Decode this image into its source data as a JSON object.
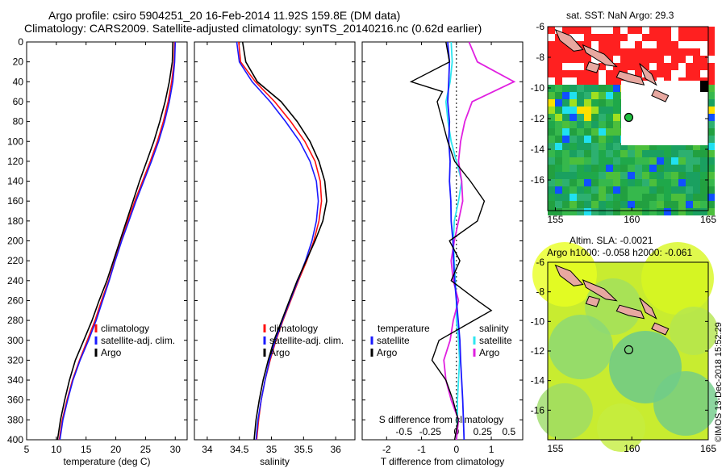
{
  "header": {
    "line1": "Argo profile: csiro 5904251_20 16-Feb-2014 11.92S 159.8E (DM data)",
    "line2": "Climatology: CARS2009. Satellite-adjusted climatology: synTS_20140216.nc (0.62d earlier)"
  },
  "colors": {
    "climatology": "#ff1010",
    "satellite": "#1a1aff",
    "argo": "#000000",
    "satellite_s": "#2ee6f0",
    "argo_s": "#e020e0"
  },
  "chart_data": [
    {
      "type": "line",
      "name": "temperature",
      "xlabel": "temperature (deg C)",
      "ylabel": "",
      "xlim": [
        5,
        32
      ],
      "ylim": [
        400,
        0
      ],
      "xticks": [
        "5",
        "10",
        "15",
        "20",
        "25",
        "30"
      ],
      "yticks": [
        "0",
        "20",
        "40",
        "60",
        "80",
        "100",
        "120",
        "140",
        "160",
        "180",
        "200",
        "220",
        "240",
        "260",
        "280",
        "300",
        "320",
        "340",
        "360",
        "380",
        "400"
      ],
      "legend": [
        "climatology",
        "satellite-adj. clim.",
        "Argo"
      ],
      "series": [
        {
          "name": "climatology",
          "points": [
            [
              29.9,
              0
            ],
            [
              29.8,
              20
            ],
            [
              29.4,
              40
            ],
            [
              28.8,
              60
            ],
            [
              28.0,
              80
            ],
            [
              27.0,
              100
            ],
            [
              25.8,
              120
            ],
            [
              24.5,
              140
            ],
            [
              23.2,
              160
            ],
            [
              22.0,
              180
            ],
            [
              20.9,
              200
            ],
            [
              19.8,
              220
            ],
            [
              18.8,
              240
            ],
            [
              17.6,
              260
            ],
            [
              16.5,
              280
            ],
            [
              15.2,
              300
            ],
            [
              13.9,
              320
            ],
            [
              12.7,
              340
            ],
            [
              11.8,
              360
            ],
            [
              11.0,
              380
            ],
            [
              10.5,
              400
            ]
          ]
        },
        {
          "name": "satellite-adj. clim.",
          "points": [
            [
              30.0,
              0
            ],
            [
              29.9,
              20
            ],
            [
              29.6,
              40
            ],
            [
              29.0,
              60
            ],
            [
              28.2,
              80
            ],
            [
              27.2,
              100
            ],
            [
              26.0,
              120
            ],
            [
              24.7,
              140
            ],
            [
              23.4,
              160
            ],
            [
              22.2,
              180
            ],
            [
              21.0,
              200
            ],
            [
              19.9,
              220
            ],
            [
              18.9,
              240
            ],
            [
              17.8,
              260
            ],
            [
              16.7,
              280
            ],
            [
              15.4,
              300
            ],
            [
              14.0,
              320
            ],
            [
              12.8,
              340
            ],
            [
              11.9,
              360
            ],
            [
              11.1,
              380
            ],
            [
              10.6,
              400
            ]
          ]
        },
        {
          "name": "Argo",
          "points": [
            [
              29.6,
              0
            ],
            [
              29.5,
              20
            ],
            [
              29.0,
              40
            ],
            [
              28.3,
              60
            ],
            [
              27.4,
              80
            ],
            [
              26.4,
              100
            ],
            [
              25.2,
              120
            ],
            [
              24.0,
              140
            ],
            [
              22.9,
              160
            ],
            [
              21.8,
              180
            ],
            [
              20.7,
              200
            ],
            [
              19.6,
              220
            ],
            [
              18.5,
              240
            ],
            [
              17.2,
              260
            ],
            [
              16.0,
              280
            ],
            [
              14.6,
              300
            ],
            [
              13.2,
              320
            ],
            [
              12.2,
              340
            ],
            [
              11.4,
              360
            ],
            [
              10.7,
              380
            ],
            [
              10.2,
              400
            ]
          ]
        }
      ]
    },
    {
      "type": "line",
      "name": "salinity",
      "xlabel": "salinity",
      "ylabel": "",
      "xlim": [
        33.8,
        36.3
      ],
      "ylim": [
        400,
        0
      ],
      "xticks": [
        "34",
        "34.5",
        "35",
        "35.5",
        "36"
      ],
      "legend": [
        "climatology",
        "satellite-adj. clim.",
        "Argo"
      ],
      "series": [
        {
          "name": "climatology",
          "points": [
            [
              34.49,
              0
            ],
            [
              34.52,
              20
            ],
            [
              34.75,
              40
            ],
            [
              35.05,
              60
            ],
            [
              35.3,
              80
            ],
            [
              35.52,
              100
            ],
            [
              35.68,
              120
            ],
            [
              35.76,
              140
            ],
            [
              35.78,
              160
            ],
            [
              35.74,
              180
            ],
            [
              35.66,
              200
            ],
            [
              35.55,
              220
            ],
            [
              35.42,
              240
            ],
            [
              35.3,
              260
            ],
            [
              35.18,
              280
            ],
            [
              35.07,
              300
            ],
            [
              34.98,
              320
            ],
            [
              34.9,
              340
            ],
            [
              34.84,
              360
            ],
            [
              34.8,
              380
            ],
            [
              34.77,
              400
            ]
          ]
        },
        {
          "name": "satellite-adj. clim.",
          "points": [
            [
              34.46,
              0
            ],
            [
              34.5,
              20
            ],
            [
              34.7,
              40
            ],
            [
              34.98,
              60
            ],
            [
              35.22,
              80
            ],
            [
              35.44,
              100
            ],
            [
              35.6,
              120
            ],
            [
              35.7,
              140
            ],
            [
              35.73,
              160
            ],
            [
              35.7,
              180
            ],
            [
              35.63,
              200
            ],
            [
              35.53,
              220
            ],
            [
              35.41,
              240
            ],
            [
              35.29,
              260
            ],
            [
              35.17,
              280
            ],
            [
              35.06,
              300
            ],
            [
              34.97,
              320
            ],
            [
              34.9,
              340
            ],
            [
              34.84,
              360
            ],
            [
              34.79,
              380
            ],
            [
              34.76,
              400
            ]
          ]
        },
        {
          "name": "Argo",
          "points": [
            [
              34.55,
              0
            ],
            [
              34.6,
              20
            ],
            [
              34.78,
              40
            ],
            [
              35.15,
              60
            ],
            [
              35.4,
              80
            ],
            [
              35.6,
              100
            ],
            [
              35.74,
              120
            ],
            [
              35.83,
              140
            ],
            [
              35.86,
              160
            ],
            [
              35.8,
              180
            ],
            [
              35.68,
              200
            ],
            [
              35.54,
              220
            ],
            [
              35.4,
              240
            ],
            [
              35.28,
              260
            ],
            [
              35.16,
              280
            ],
            [
              35.04,
              300
            ],
            [
              34.95,
              320
            ],
            [
              34.87,
              340
            ],
            [
              34.81,
              360
            ],
            [
              34.76,
              380
            ],
            [
              34.73,
              400
            ]
          ]
        }
      ]
    },
    {
      "type": "line",
      "name": "difference",
      "xlabel": "T difference from climatology",
      "xlabel2": "S difference from climatology",
      "xlim": [
        -2.7,
        1.9
      ],
      "ylim": [
        400,
        0
      ],
      "xticks": [
        "-2",
        "-1",
        "0",
        "1"
      ],
      "xticks2": [
        "-0.5",
        "-0.25",
        "0",
        "0.25",
        "0.5"
      ],
      "legend_t_title": "temperature",
      "legend_s_title": "salinity",
      "legend_t": [
        "satellite",
        "Argo"
      ],
      "legend_s": [
        "satellite",
        "Argo"
      ],
      "series": [
        {
          "name": "T satellite",
          "points": [
            [
              -0.25,
              0
            ],
            [
              -0.2,
              20
            ],
            [
              -0.22,
              40
            ],
            [
              -0.25,
              60
            ],
            [
              -0.2,
              80
            ],
            [
              -0.22,
              100
            ],
            [
              -0.18,
              120
            ],
            [
              -0.2,
              140
            ],
            [
              -0.16,
              160
            ],
            [
              -0.15,
              180
            ],
            [
              -0.1,
              200
            ],
            [
              -0.08,
              220
            ],
            [
              -0.05,
              240
            ],
            [
              0.0,
              260
            ],
            [
              0.05,
              280
            ],
            [
              0.1,
              300
            ],
            [
              0.12,
              320
            ],
            [
              0.15,
              340
            ],
            [
              0.18,
              360
            ],
            [
              0.2,
              380
            ],
            [
              0.22,
              400
            ]
          ]
        },
        {
          "name": "T Argo",
          "points": [
            [
              -0.3,
              0
            ],
            [
              -0.2,
              20
            ],
            [
              -1.3,
              40
            ],
            [
              -0.4,
              50
            ],
            [
              -0.55,
              60
            ],
            [
              -0.4,
              80
            ],
            [
              -0.25,
              100
            ],
            [
              -0.05,
              120
            ],
            [
              0.4,
              140
            ],
            [
              0.8,
              160
            ],
            [
              0.6,
              180
            ],
            [
              -0.2,
              200
            ],
            [
              0.1,
              220
            ],
            [
              -0.15,
              240
            ],
            [
              0.6,
              260
            ],
            [
              1.0,
              270
            ],
            [
              0.5,
              280
            ],
            [
              -0.5,
              300
            ],
            [
              -0.7,
              320
            ],
            [
              -0.3,
              340
            ],
            [
              -0.1,
              360
            ],
            [
              0.05,
              380
            ],
            [
              -0.05,
              400
            ]
          ]
        },
        {
          "name": "S satellite",
          "points": [
            [
              -0.05,
              0
            ],
            [
              -0.04,
              20
            ],
            [
              -0.06,
              40
            ],
            [
              -0.1,
              60
            ],
            [
              -0.08,
              80
            ],
            [
              -0.05,
              100
            ],
            [
              0.0,
              120
            ],
            [
              0.05,
              140
            ],
            [
              0.02,
              160
            ],
            [
              -0.02,
              180
            ],
            [
              -0.03,
              200
            ],
            [
              -0.02,
              220
            ],
            [
              -0.01,
              240
            ],
            [
              0.0,
              260
            ],
            [
              0.0,
              280
            ],
            [
              0.02,
              300
            ],
            [
              0.03,
              320
            ],
            [
              0.02,
              340
            ],
            [
              0.01,
              360
            ],
            [
              0.01,
              380
            ],
            [
              0.0,
              400
            ]
          ]
        },
        {
          "name": "S Argo",
          "points": [
            [
              0.12,
              0
            ],
            [
              0.2,
              20
            ],
            [
              0.55,
              40
            ],
            [
              0.15,
              60
            ],
            [
              0.08,
              80
            ],
            [
              0.04,
              100
            ],
            [
              0.02,
              120
            ],
            [
              0.05,
              140
            ],
            [
              0.06,
              160
            ],
            [
              0.02,
              180
            ],
            [
              -0.02,
              200
            ],
            [
              -0.05,
              220
            ],
            [
              -0.03,
              240
            ],
            [
              0.02,
              260
            ],
            [
              -0.03,
              280
            ],
            [
              -0.06,
              300
            ],
            [
              -0.12,
              320
            ],
            [
              -0.1,
              340
            ],
            [
              -0.05,
              360
            ],
            [
              0.02,
              380
            ],
            [
              0.0,
              400
            ]
          ]
        }
      ]
    }
  ],
  "maps": {
    "top": {
      "title": "sat. SST: NaN Argo: 29.3",
      "xticks": [
        "155",
        "160",
        "165"
      ],
      "yticks": [
        "-6",
        "-8",
        "-10",
        "-12",
        "-14",
        "-16"
      ]
    },
    "bottom": {
      "title1": "Altim. SLA: -0.0021",
      "title2": "Argo h1000: -0.058 h2000: -0.061",
      "xticks": [
        "155",
        "160",
        "165"
      ],
      "yticks": [
        "-6",
        "-8",
        "-10",
        "-12",
        "-14",
        "-16"
      ]
    }
  },
  "footer": {
    "credit": "©IMOS 13-Dec-2018 15:52:29"
  }
}
